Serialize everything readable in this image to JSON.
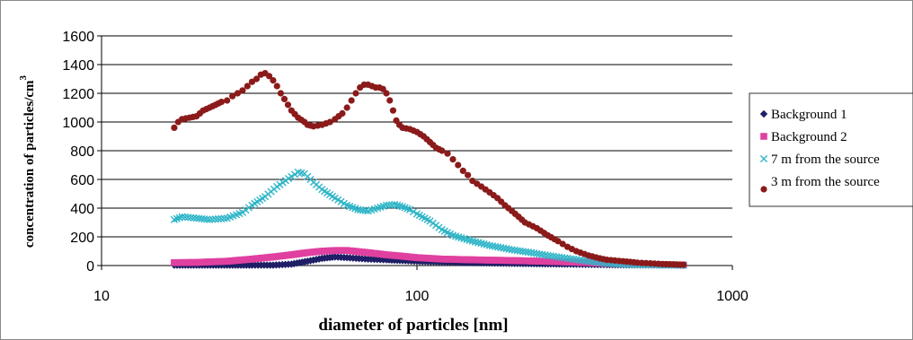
{
  "chart_data": {
    "type": "scatter",
    "title": "",
    "xlabel": "diameter of particles [nm]",
    "ylabel": "concentration of particles/cm",
    "ylabel_superscript": "3",
    "x_scale": "log",
    "xlim": [
      10,
      1000
    ],
    "ylim": [
      0,
      1600
    ],
    "x_ticks": [
      10,
      100,
      1000
    ],
    "x_tick_labels": [
      "10",
      "100",
      "1000"
    ],
    "y_ticks": [
      0,
      200,
      400,
      600,
      800,
      1000,
      1200,
      1400,
      1600
    ],
    "y_tick_labels": [
      "0",
      "200",
      "400",
      "600",
      "800",
      "1000",
      "1200",
      "1400",
      "1600"
    ],
    "grid": "horizontal",
    "legend_position": "right",
    "series": [
      {
        "name": "Background 1",
        "color": "#1f1f66",
        "marker": "diamond",
        "points": [
          [
            17,
            3
          ],
          [
            20,
            3
          ],
          [
            25,
            3
          ],
          [
            30,
            3
          ],
          [
            35,
            3
          ],
          [
            40,
            10
          ],
          [
            45,
            30
          ],
          [
            50,
            50
          ],
          [
            55,
            60
          ],
          [
            60,
            55
          ],
          [
            70,
            45
          ],
          [
            80,
            40
          ],
          [
            90,
            35
          ],
          [
            100,
            30
          ],
          [
            120,
            25
          ],
          [
            150,
            20
          ],
          [
            200,
            15
          ],
          [
            250,
            12
          ],
          [
            300,
            10
          ],
          [
            350,
            8
          ],
          [
            400,
            6
          ],
          [
            500,
            4
          ],
          [
            600,
            3
          ],
          [
            700,
            2
          ]
        ]
      },
      {
        "name": "Background 2",
        "color": "#e040a0",
        "marker": "square",
        "points": [
          [
            17,
            20
          ],
          [
            20,
            22
          ],
          [
            25,
            30
          ],
          [
            30,
            45
          ],
          [
            35,
            60
          ],
          [
            40,
            75
          ],
          [
            45,
            90
          ],
          [
            50,
            100
          ],
          [
            55,
            105
          ],
          [
            60,
            105
          ],
          [
            70,
            90
          ],
          [
            80,
            75
          ],
          [
            90,
            65
          ],
          [
            100,
            55
          ],
          [
            120,
            45
          ],
          [
            150,
            40
          ],
          [
            200,
            35
          ],
          [
            250,
            30
          ],
          [
            300,
            25
          ],
          [
            350,
            20
          ],
          [
            400,
            15
          ],
          [
            500,
            10
          ],
          [
            600,
            6
          ],
          [
            700,
            4
          ]
        ]
      },
      {
        "name": "7 m from the source",
        "color": "#2fb5c8",
        "marker": "x",
        "points": [
          [
            17,
            320
          ],
          [
            18,
            340
          ],
          [
            20,
            330
          ],
          [
            22,
            320
          ],
          [
            25,
            330
          ],
          [
            28,
            370
          ],
          [
            30,
            420
          ],
          [
            33,
            480
          ],
          [
            36,
            550
          ],
          [
            40,
            620
          ],
          [
            42,
            650
          ],
          [
            44,
            640
          ],
          [
            47,
            580
          ],
          [
            50,
            530
          ],
          [
            55,
            470
          ],
          [
            60,
            420
          ],
          [
            65,
            390
          ],
          [
            70,
            380
          ],
          [
            75,
            400
          ],
          [
            80,
            420
          ],
          [
            85,
            425
          ],
          [
            90,
            410
          ],
          [
            95,
            390
          ],
          [
            100,
            360
          ],
          [
            110,
            310
          ],
          [
            120,
            250
          ],
          [
            130,
            210
          ],
          [
            150,
            170
          ],
          [
            170,
            140
          ],
          [
            200,
            110
          ],
          [
            230,
            90
          ],
          [
            260,
            70
          ],
          [
            300,
            50
          ],
          [
            350,
            30
          ],
          [
            400,
            15
          ],
          [
            450,
            8
          ],
          [
            500,
            5
          ],
          [
            600,
            3
          ],
          [
            700,
            2
          ]
        ]
      },
      {
        "name": "3 m from the source",
        "color": "#8b1a1a",
        "marker": "circle",
        "points": [
          [
            17,
            960
          ],
          [
            17.5,
            1000
          ],
          [
            18,
            1020
          ],
          [
            19,
            1030
          ],
          [
            20,
            1040
          ],
          [
            21,
            1080
          ],
          [
            22,
            1100
          ],
          [
            23,
            1120
          ],
          [
            24,
            1140
          ],
          [
            25,
            1150
          ],
          [
            26,
            1180
          ],
          [
            27,
            1200
          ],
          [
            28,
            1220
          ],
          [
            29,
            1250
          ],
          [
            30,
            1280
          ],
          [
            31,
            1300
          ],
          [
            32,
            1330
          ],
          [
            33,
            1340
          ],
          [
            34,
            1320
          ],
          [
            35,
            1290
          ],
          [
            36,
            1250
          ],
          [
            37,
            1200
          ],
          [
            38,
            1160
          ],
          [
            39,
            1120
          ],
          [
            40,
            1080
          ],
          [
            42,
            1030
          ],
          [
            44,
            1000
          ],
          [
            45,
            980
          ],
          [
            47,
            970
          ],
          [
            50,
            980
          ],
          [
            53,
            1000
          ],
          [
            55,
            1020
          ],
          [
            58,
            1060
          ],
          [
            60,
            1100
          ],
          [
            62,
            1150
          ],
          [
            64,
            1200
          ],
          [
            66,
            1240
          ],
          [
            68,
            1260
          ],
          [
            70,
            1260
          ],
          [
            72,
            1250
          ],
          [
            74,
            1240
          ],
          [
            76,
            1240
          ],
          [
            78,
            1230
          ],
          [
            80,
            1200
          ],
          [
            82,
            1150
          ],
          [
            84,
            1080
          ],
          [
            86,
            1010
          ],
          [
            88,
            980
          ],
          [
            90,
            960
          ],
          [
            95,
            950
          ],
          [
            100,
            930
          ],
          [
            105,
            900
          ],
          [
            110,
            860
          ],
          [
            115,
            820
          ],
          [
            120,
            800
          ],
          [
            125,
            780
          ],
          [
            130,
            740
          ],
          [
            135,
            700
          ],
          [
            140,
            660
          ],
          [
            145,
            630
          ],
          [
            150,
            590
          ],
          [
            160,
            550
          ],
          [
            170,
            510
          ],
          [
            180,
            470
          ],
          [
            190,
            420
          ],
          [
            200,
            380
          ],
          [
            210,
            340
          ],
          [
            220,
            300
          ],
          [
            240,
            260
          ],
          [
            260,
            210
          ],
          [
            280,
            170
          ],
          [
            300,
            130
          ],
          [
            320,
            100
          ],
          [
            350,
            70
          ],
          [
            380,
            50
          ],
          [
            400,
            40
          ],
          [
            450,
            30
          ],
          [
            500,
            20
          ],
          [
            550,
            15
          ],
          [
            600,
            10
          ],
          [
            650,
            8
          ],
          [
            700,
            6
          ]
        ]
      }
    ]
  }
}
